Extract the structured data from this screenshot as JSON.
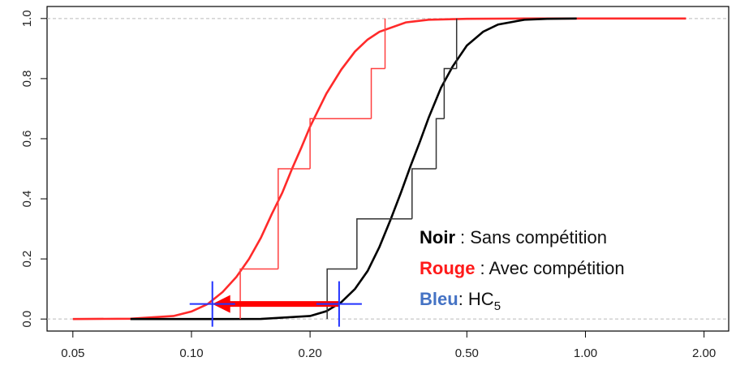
{
  "chart_data": {
    "type": "line",
    "xscale": "log",
    "xlim": [
      0.043,
      2.31
    ],
    "ylim": [
      -0.04,
      1.04
    ],
    "xticks": [
      0.05,
      {
        "value": 0.1,
        "label": "0.10"
      },
      {
        "value": 0.2,
        "label": "0.20"
      },
      {
        "value": 0.5,
        "label": "0.50"
      },
      {
        "value": 1,
        "label": "1.00"
      },
      {
        "value": 2,
        "label": "2.00"
      }
    ],
    "yticks": [
      {
        "value": 0,
        "label": "0.0"
      },
      0.2,
      0.4,
      0.6,
      0.8,
      {
        "value": 1,
        "label": "1.0"
      }
    ],
    "hlines": [
      0,
      1
    ],
    "series": [
      {
        "name": "Rouge",
        "color": "#ff2a2a",
        "step": false,
        "x": [
          0.05,
          0.07,
          0.09,
          0.1,
          0.11,
          0.12,
          0.13,
          0.14,
          0.15,
          0.16,
          0.17,
          0.18,
          0.19,
          0.2,
          0.22,
          0.24,
          0.26,
          0.28,
          0.3,
          0.35,
          0.4,
          0.5,
          0.7,
          1.0,
          1.8
        ],
        "values": [
          0,
          0.001,
          0.01,
          0.025,
          0.05,
          0.09,
          0.14,
          0.2,
          0.27,
          0.35,
          0.42,
          0.5,
          0.57,
          0.64,
          0.75,
          0.83,
          0.89,
          0.93,
          0.956,
          0.987,
          0.996,
          0.999,
          1,
          1,
          1
        ]
      },
      {
        "name": "Noir",
        "color": "#000000",
        "step": false,
        "x": [
          0.07,
          0.1,
          0.15,
          0.2,
          0.22,
          0.24,
          0.26,
          0.28,
          0.3,
          0.32,
          0.34,
          0.36,
          0.38,
          0.4,
          0.43,
          0.46,
          0.5,
          0.55,
          0.6,
          0.7,
          0.8,
          0.95
        ],
        "values": [
          0,
          0,
          0.0003,
          0.01,
          0.026,
          0.056,
          0.1,
          0.16,
          0.24,
          0.33,
          0.42,
          0.51,
          0.59,
          0.67,
          0.77,
          0.84,
          0.91,
          0.956,
          0.98,
          0.996,
          0.999,
          1
        ]
      },
      {
        "name": "Rouge",
        "color": "#ff4040",
        "step": true,
        "x": [
          0.133,
          0.166,
          0.2,
          0.286,
          0.31
        ],
        "values": [
          0.1667,
          0.5,
          0.6667,
          0.8333,
          1.0
        ]
      },
      {
        "name": "Noir",
        "color": "#333333",
        "step": true,
        "x": [
          0.221,
          0.263,
          0.363,
          0.418,
          0.438,
          0.471
        ],
        "values": [
          0.1667,
          0.3333,
          0.5,
          0.6667,
          0.8333,
          1.0
        ]
      }
    ],
    "hc5": {
      "color": "#2233ff",
      "x": [
        0.113,
        0.237
      ],
      "values": [
        0.05,
        0.05
      ]
    },
    "arrow": {
      "color": "#ff0000",
      "from": 0.237,
      "to": 0.113,
      "y": 0.05
    },
    "legend": [
      {
        "key": "Noir",
        "color": "#000000",
        "text": ": Sans compétition"
      },
      {
        "key": "Rouge",
        "color": "#ff1a1a",
        "text": ": Avec compétition"
      },
      {
        "key": "Bleu",
        "color": "#4472c4",
        "text": ": HC",
        "subscript": "5"
      }
    ]
  }
}
